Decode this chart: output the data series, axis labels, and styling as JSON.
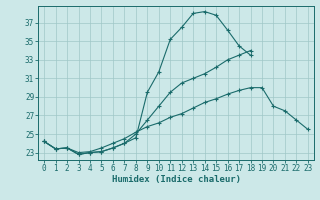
{
  "xlabel": "Humidex (Indice chaleur)",
  "background_color": "#cce8e8",
  "grid_color": "#a0c8c8",
  "line_color": "#1a6b6b",
  "xlim": [
    -0.5,
    23.5
  ],
  "ylim": [
    22.2,
    38.8
  ],
  "yticks": [
    23,
    25,
    27,
    29,
    31,
    33,
    35,
    37
  ],
  "xticks": [
    0,
    1,
    2,
    3,
    4,
    5,
    6,
    7,
    8,
    9,
    10,
    11,
    12,
    13,
    14,
    15,
    16,
    17,
    18,
    19,
    20,
    21,
    22,
    23
  ],
  "line1_y": [
    24.2,
    23.4,
    23.5,
    22.8,
    23.0,
    23.1,
    23.5,
    24.0,
    24.6,
    29.5,
    31.7,
    35.2,
    36.5,
    38.0,
    38.2,
    37.8,
    36.2,
    34.5,
    33.5,
    null,
    null,
    null,
    null,
    null
  ],
  "line2_y": [
    24.2,
    23.4,
    23.5,
    22.8,
    23.0,
    23.1,
    23.5,
    24.0,
    25.0,
    26.5,
    28.0,
    29.5,
    30.5,
    31.0,
    31.5,
    32.2,
    33.0,
    33.5,
    34.0,
    null,
    null,
    null,
    null,
    null
  ],
  "line3_y": [
    24.2,
    23.4,
    23.5,
    23.0,
    23.1,
    23.5,
    24.0,
    24.5,
    25.2,
    25.8,
    26.2,
    26.8,
    27.2,
    27.8,
    28.4,
    28.8,
    29.3,
    29.7,
    30.0,
    30.0,
    28.0,
    27.5,
    26.5,
    25.5
  ]
}
